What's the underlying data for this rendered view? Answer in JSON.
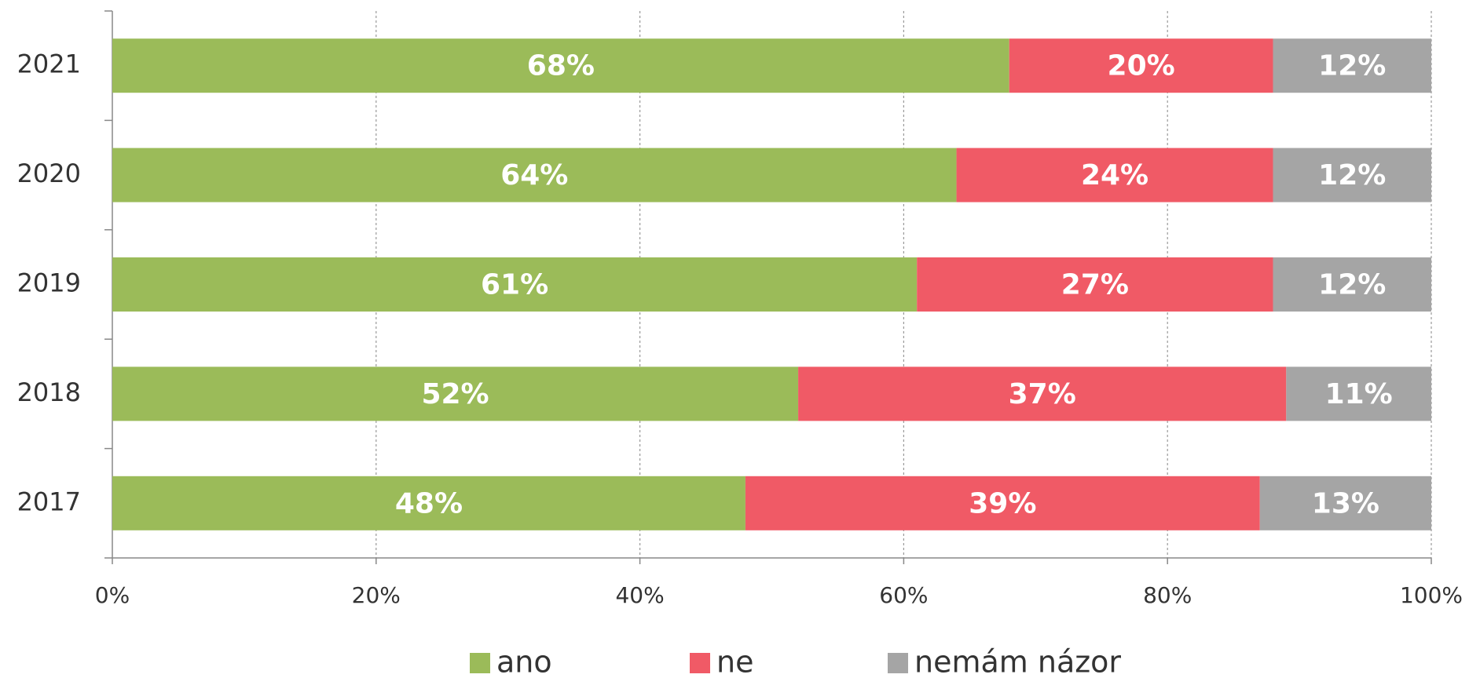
{
  "chart_data": {
    "type": "stacked-bar-horizontal",
    "categories": [
      "2021",
      "2020",
      "2019",
      "2018",
      "2017"
    ],
    "series": [
      {
        "name": "ano",
        "color": "#9bbb59",
        "values": [
          68,
          64,
          61,
          52,
          48
        ],
        "value_labels": [
          "68%",
          "64%",
          "61%",
          "52%",
          "48%"
        ]
      },
      {
        "name": "ne",
        "color": "#f05a66",
        "values": [
          20,
          24,
          27,
          37,
          39
        ],
        "value_labels": [
          "20%",
          "24%",
          "27%",
          "37%",
          "39%"
        ]
      },
      {
        "name": "nemám názor",
        "color": "#a5a5a5",
        "values": [
          12,
          12,
          12,
          11,
          13
        ],
        "value_labels": [
          "12%",
          "12%",
          "12%",
          "11%",
          "13%"
        ]
      }
    ],
    "xlim": [
      0,
      100
    ],
    "xticks": [
      {
        "value": 0,
        "label": "0%"
      },
      {
        "value": 20,
        "label": "20%"
      },
      {
        "value": 40,
        "label": "40%"
      },
      {
        "value": 60,
        "label": "60%"
      },
      {
        "value": 80,
        "label": "80%"
      },
      {
        "value": 100,
        "label": "100%"
      }
    ],
    "grid": true,
    "legend": "bottom"
  }
}
